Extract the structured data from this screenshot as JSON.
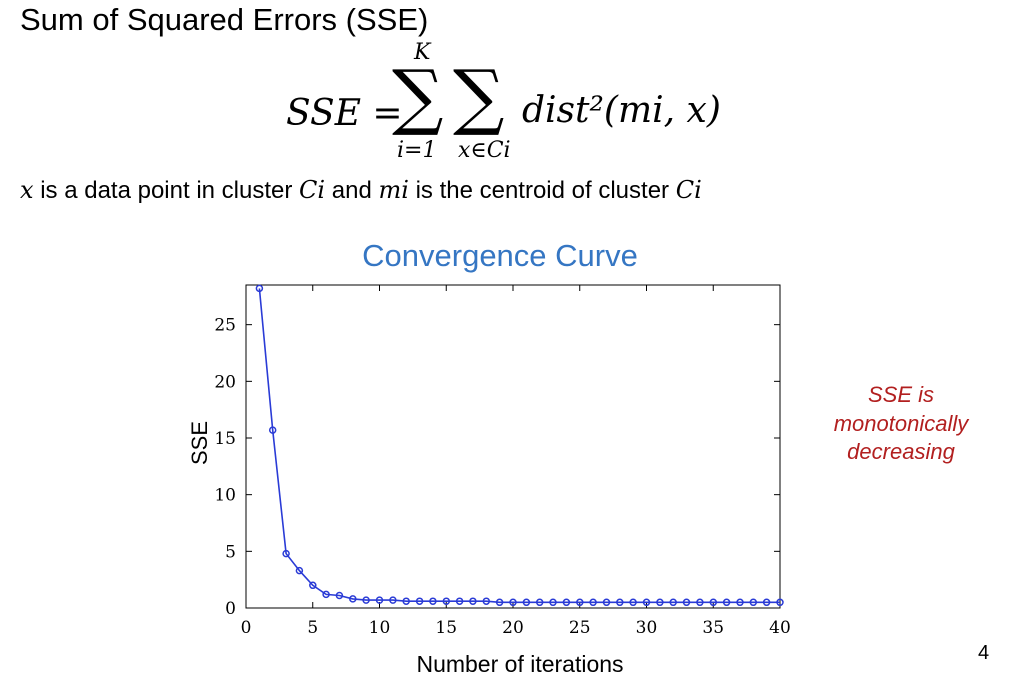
{
  "slide": {
    "title": "Sum of Squared Errors (SSE)",
    "formula": {
      "lhs": "SSE =",
      "sum_symbol": "∑",
      "upper_limit": "K",
      "lower_limit_outer": "i=1",
      "lower_limit_inner": "x∈Ci",
      "rhs": "dist²(mi, x)"
    },
    "definition": {
      "var_x": "x",
      "text1": " is a data point in cluster ",
      "cluster1": "Ci",
      "text2": " and ",
      "centroid": "mi",
      "text3": " is the centroid of cluster ",
      "cluster2": "Ci"
    },
    "note": "SSE is monotonically decreasing",
    "page_number": "4"
  },
  "chart_data": {
    "type": "line",
    "title": "Convergence Curve",
    "xlabel": "Number of iterations",
    "ylabel": "SSE",
    "xlim": [
      0,
      40
    ],
    "ylim": [
      0,
      28.5
    ],
    "xticks": [
      0,
      5,
      10,
      15,
      20,
      25,
      30,
      35,
      40
    ],
    "yticks": [
      0,
      5,
      10,
      15,
      20,
      25
    ],
    "grid": false,
    "line_color": "#2a3bd6",
    "x": [
      1,
      2,
      3,
      4,
      5,
      6,
      7,
      8,
      9,
      10,
      11,
      12,
      13,
      14,
      15,
      16,
      17,
      18,
      19,
      20,
      21,
      22,
      23,
      24,
      25,
      26,
      27,
      28,
      29,
      30,
      31,
      32,
      33,
      34,
      35,
      36,
      37,
      38,
      39,
      40
    ],
    "y": [
      28.2,
      15.7,
      4.8,
      3.3,
      2.0,
      1.2,
      1.1,
      0.8,
      0.7,
      0.7,
      0.7,
      0.6,
      0.6,
      0.6,
      0.6,
      0.6,
      0.6,
      0.6,
      0.5,
      0.5,
      0.5,
      0.5,
      0.5,
      0.5,
      0.5,
      0.5,
      0.5,
      0.5,
      0.5,
      0.5,
      0.5,
      0.5,
      0.5,
      0.5,
      0.5,
      0.5,
      0.5,
      0.5,
      0.5,
      0.5
    ]
  }
}
